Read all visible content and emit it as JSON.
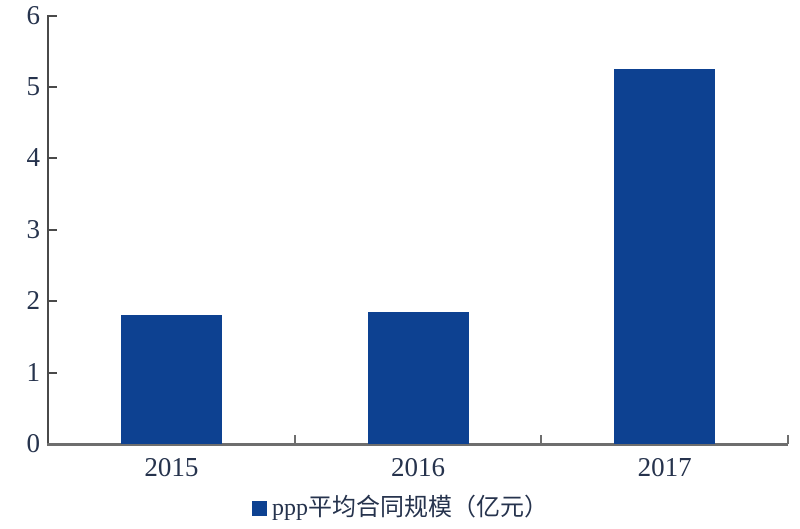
{
  "chart_data": {
    "type": "bar",
    "title": "",
    "categories": [
      "2015",
      "2016",
      "2017"
    ],
    "values": [
      1.8,
      1.85,
      5.25
    ],
    "series_name": "ppp平均合同规模（亿元）",
    "xlabel": "",
    "ylabel": "",
    "ylim": [
      0,
      6
    ],
    "yticks": [
      0,
      1,
      2,
      3,
      4,
      5,
      6
    ],
    "grid": false,
    "legend_position": "bottom-center",
    "bar_color": "#0d4191"
  },
  "legend": {
    "marker": "square",
    "label": "ppp平均合同规模（亿元）"
  },
  "colors": {
    "bar": "#0d4191",
    "axis_x": "#6e6e6e",
    "axis_y": "#4a4a4a",
    "text": "#26334d",
    "background": "#ffffff"
  }
}
